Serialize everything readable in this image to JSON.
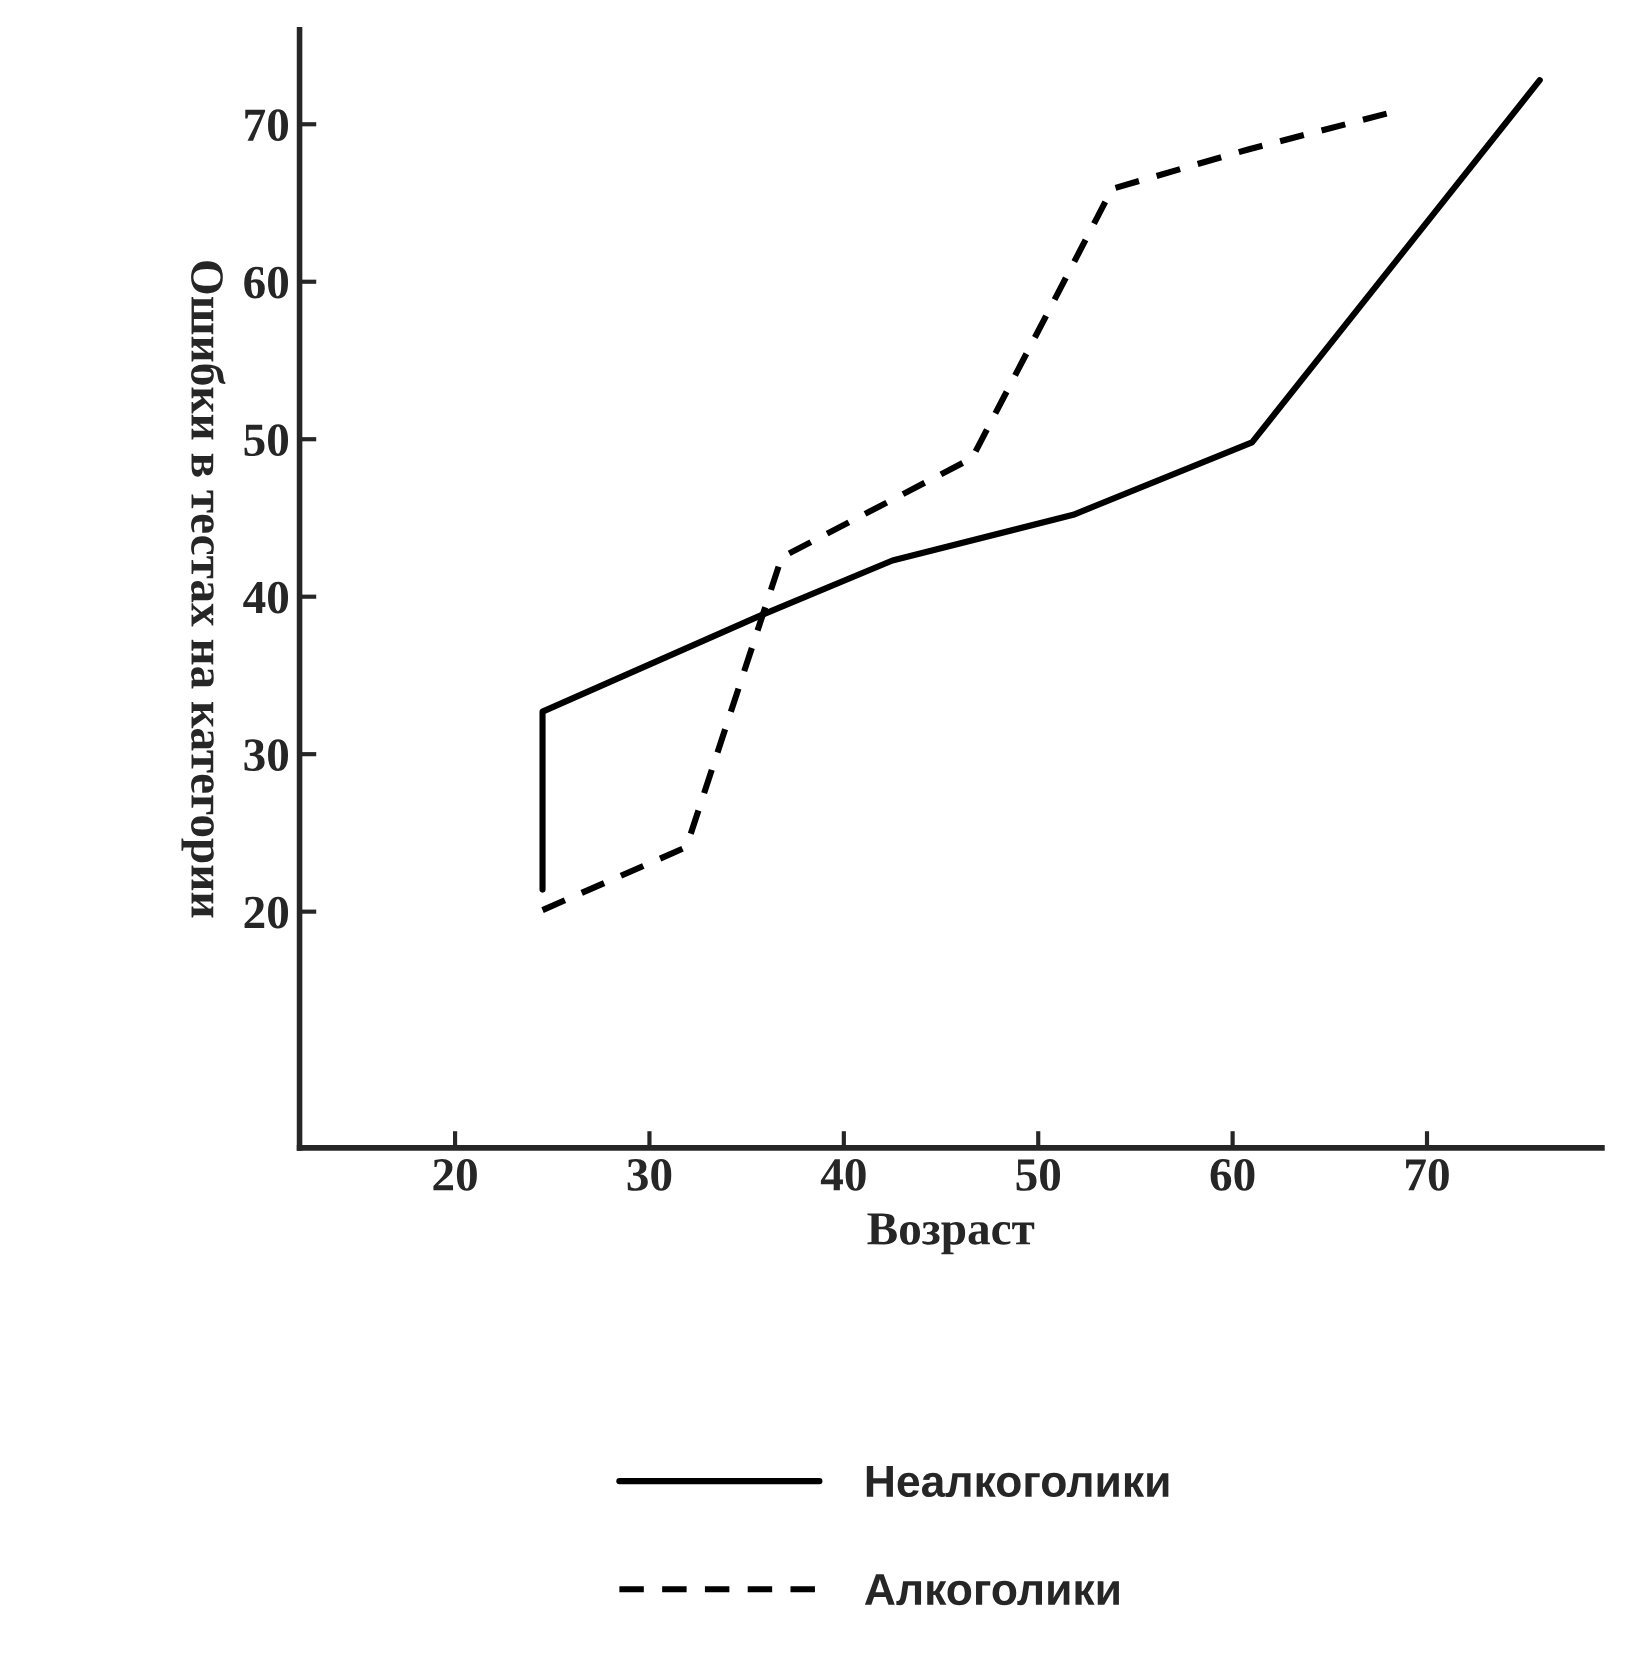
{
  "chart_data": {
    "type": "line",
    "xlabel": "Возраст",
    "ylabel": "Ошибки в тестах на категории",
    "xlim": [
      12,
      79
    ],
    "ylim": [
      5,
      76
    ],
    "xticks": [
      20,
      30,
      40,
      50,
      60,
      70
    ],
    "yticks": [
      20,
      30,
      40,
      50,
      60,
      70
    ],
    "legend": "bottom",
    "grid": false,
    "marker": "none",
    "series": [
      {
        "name": "Неалкоголики",
        "color": "#000000",
        "line_style": "solid",
        "x": [
          24.5,
          24.5,
          35.7,
          42.5,
          51.8,
          61.0,
          75.8
        ],
        "values": [
          21.4,
          32.7,
          38.8,
          42.3,
          45.2,
          49.8,
          72.8
        ]
      },
      {
        "name": "Алкоголики",
        "color": "#000000",
        "line_style": "dashed",
        "x": [
          24.5,
          31.9,
          36.8,
          46.6,
          53.8,
          60.8,
          68.0
        ],
        "values": [
          20.1,
          24.1,
          42.5,
          48.8,
          65.9,
          68.4,
          70.7
        ]
      }
    ]
  }
}
